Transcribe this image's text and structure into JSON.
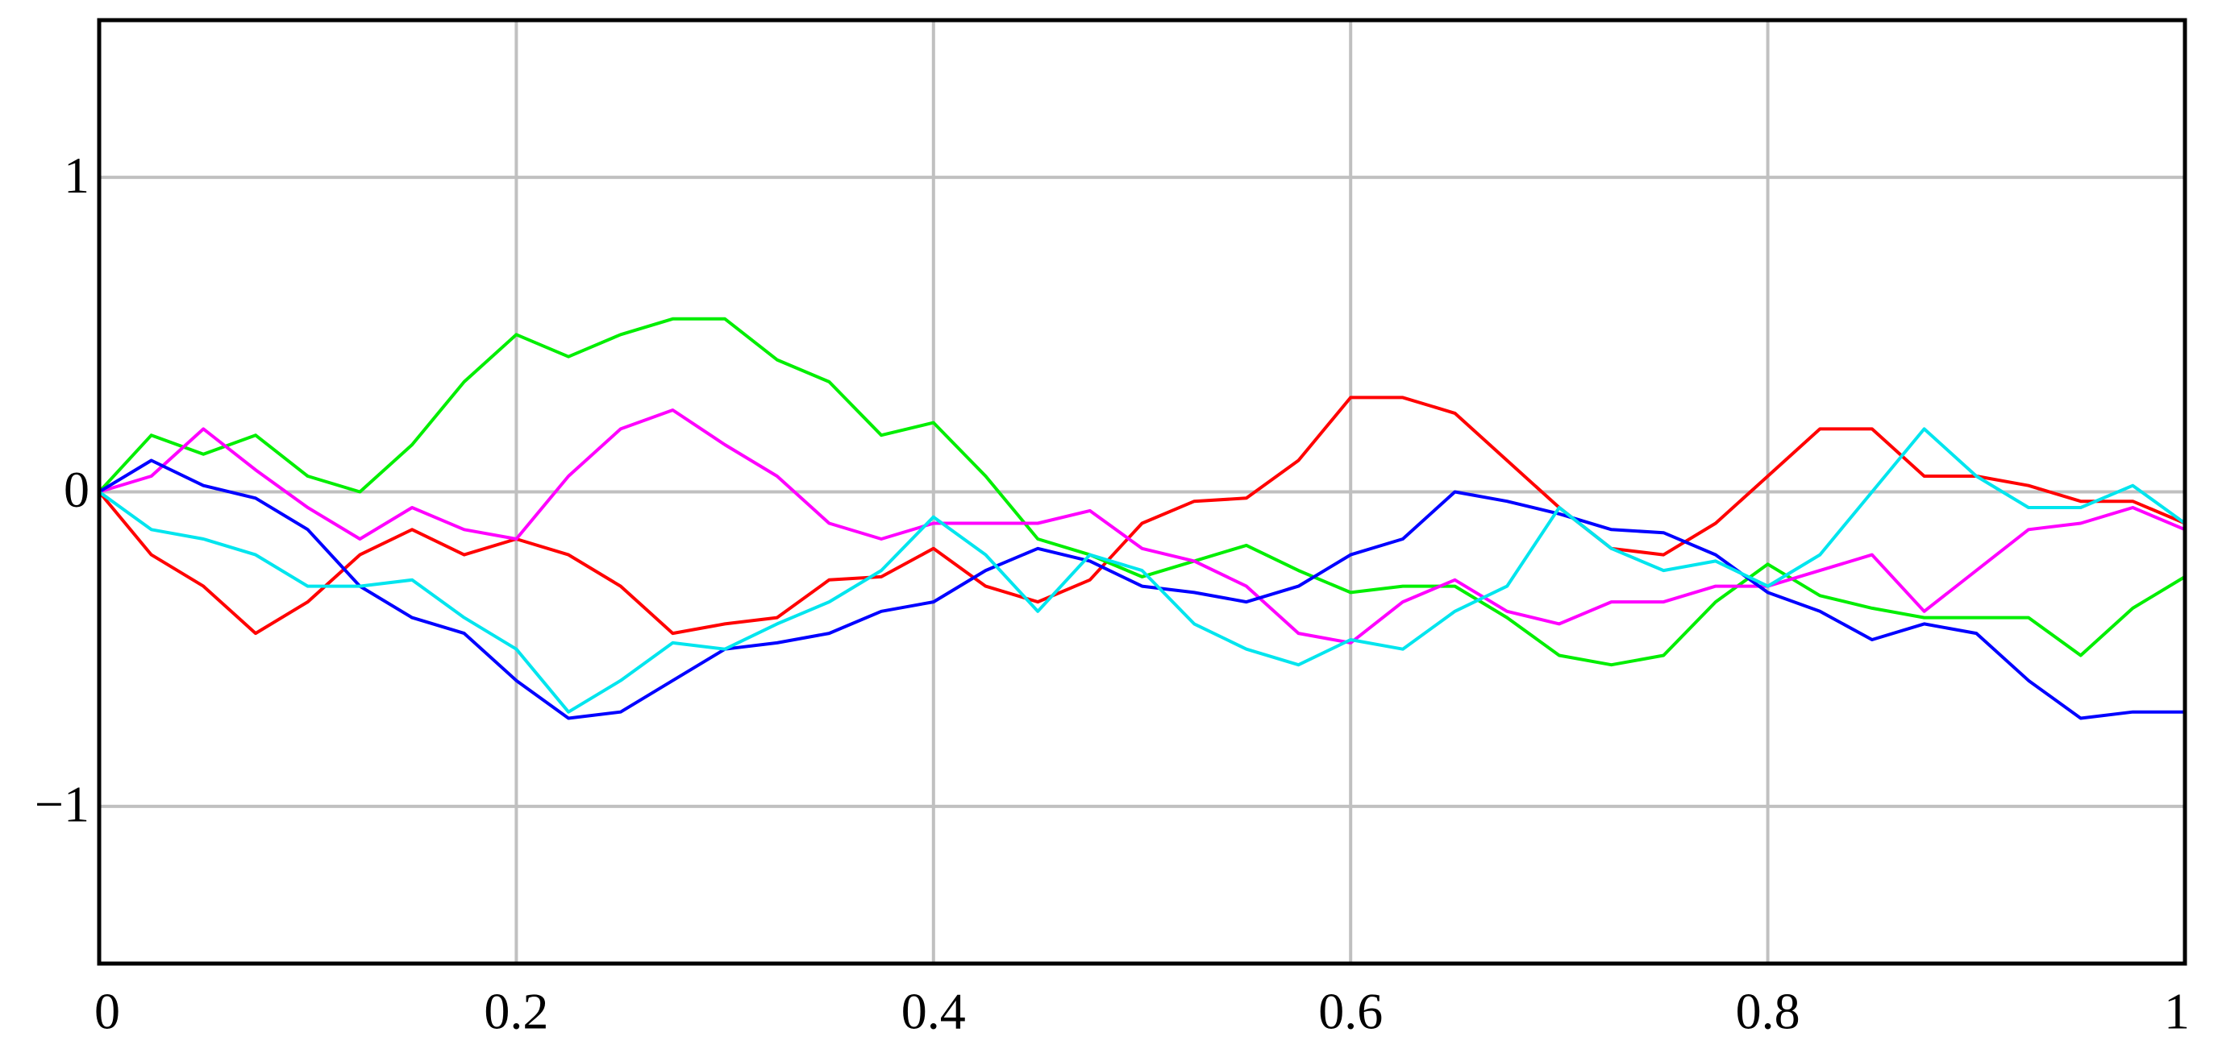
{
  "chart_data": {
    "type": "line",
    "x": [
      0,
      0.025,
      0.05,
      0.075,
      0.1,
      0.125,
      0.15,
      0.175,
      0.2,
      0.225,
      0.25,
      0.275,
      0.3,
      0.325,
      0.35,
      0.375,
      0.4,
      0.425,
      0.45,
      0.475,
      0.5,
      0.525,
      0.55,
      0.575,
      0.6,
      0.625,
      0.65,
      0.675,
      0.7,
      0.725,
      0.75,
      0.775,
      0.8,
      0.825,
      0.85,
      0.875,
      0.9,
      0.925,
      0.95,
      0.975,
      1
    ],
    "series": [
      {
        "color": "#ff0000",
        "values": [
          0,
          -0.2,
          -0.3,
          -0.45,
          -0.35,
          -0.2,
          -0.12,
          -0.2,
          -0.15,
          -0.2,
          -0.3,
          -0.45,
          -0.42,
          -0.4,
          -0.28,
          -0.27,
          -0.18,
          -0.3,
          -0.35,
          -0.28,
          -0.1,
          -0.03,
          -0.02,
          0.1,
          0.3,
          0.3,
          0.25,
          0.1,
          -0.05,
          -0.18,
          -0.2,
          -0.1,
          0.05,
          0.2,
          0.2,
          0.05,
          0.05,
          0.02,
          -0.03,
          -0.03,
          -0.1
        ]
      },
      {
        "color": "#00ee00",
        "values": [
          0,
          0.18,
          0.12,
          0.18,
          0.05,
          0,
          0.15,
          0.35,
          0.5,
          0.43,
          0.5,
          0.55,
          0.55,
          0.42,
          0.35,
          0.18,
          0.22,
          0.05,
          -0.15,
          -0.2,
          -0.27,
          -0.22,
          -0.17,
          -0.25,
          -0.32,
          -0.3,
          -0.3,
          -0.4,
          -0.52,
          -0.55,
          -0.52,
          -0.35,
          -0.23,
          -0.33,
          -0.37,
          -0.4,
          -0.4,
          -0.4,
          -0.52,
          -0.37,
          -0.27
        ]
      },
      {
        "color": "#ff00ff",
        "values": [
          0,
          0.05,
          0.2,
          0.07,
          -0.05,
          -0.15,
          -0.05,
          -0.12,
          -0.15,
          0.05,
          0.2,
          0.26,
          0.15,
          0.05,
          -0.1,
          -0.15,
          -0.1,
          -0.1,
          -0.1,
          -0.06,
          -0.18,
          -0.22,
          -0.3,
          -0.45,
          -0.48,
          -0.35,
          -0.28,
          -0.38,
          -0.42,
          -0.35,
          -0.35,
          -0.3,
          -0.3,
          -0.25,
          -0.2,
          -0.38,
          -0.25,
          -0.12,
          -0.1,
          -0.05,
          -0.12
        ]
      },
      {
        "color": "#0000ff",
        "values": [
          0,
          0.1,
          0.02,
          -0.02,
          -0.12,
          -0.3,
          -0.4,
          -0.45,
          -0.6,
          -0.72,
          -0.7,
          -0.6,
          -0.5,
          -0.48,
          -0.45,
          -0.38,
          -0.35,
          -0.25,
          -0.18,
          -0.22,
          -0.3,
          -0.32,
          -0.35,
          -0.3,
          -0.2,
          -0.15,
          0,
          -0.03,
          -0.07,
          -0.12,
          -0.13,
          -0.2,
          -0.32,
          -0.38,
          -0.47,
          -0.42,
          -0.45,
          -0.6,
          -0.72,
          -0.7,
          -0.7
        ]
      },
      {
        "color": "#00e5ee",
        "values": [
          0,
          -0.12,
          -0.15,
          -0.2,
          -0.3,
          -0.3,
          -0.28,
          -0.4,
          -0.5,
          -0.7,
          -0.6,
          -0.48,
          -0.5,
          -0.42,
          -0.35,
          -0.25,
          -0.08,
          -0.2,
          -0.38,
          -0.2,
          -0.25,
          -0.42,
          -0.5,
          -0.55,
          -0.47,
          -0.5,
          -0.38,
          -0.3,
          -0.05,
          -0.18,
          -0.25,
          -0.22,
          -0.3,
          -0.2,
          0,
          0.2,
          0.05,
          -0.05,
          -0.05,
          0.02,
          -0.1
        ]
      }
    ],
    "xlim": [
      0,
      1
    ],
    "xticks": [
      0,
      0.2,
      0.4,
      0.6,
      0.8,
      1
    ],
    "ylim": [
      -1.5,
      1.5
    ],
    "yticks": [
      {
        "value": -1,
        "label": "−1"
      },
      0,
      1
    ],
    "grid": true
  }
}
